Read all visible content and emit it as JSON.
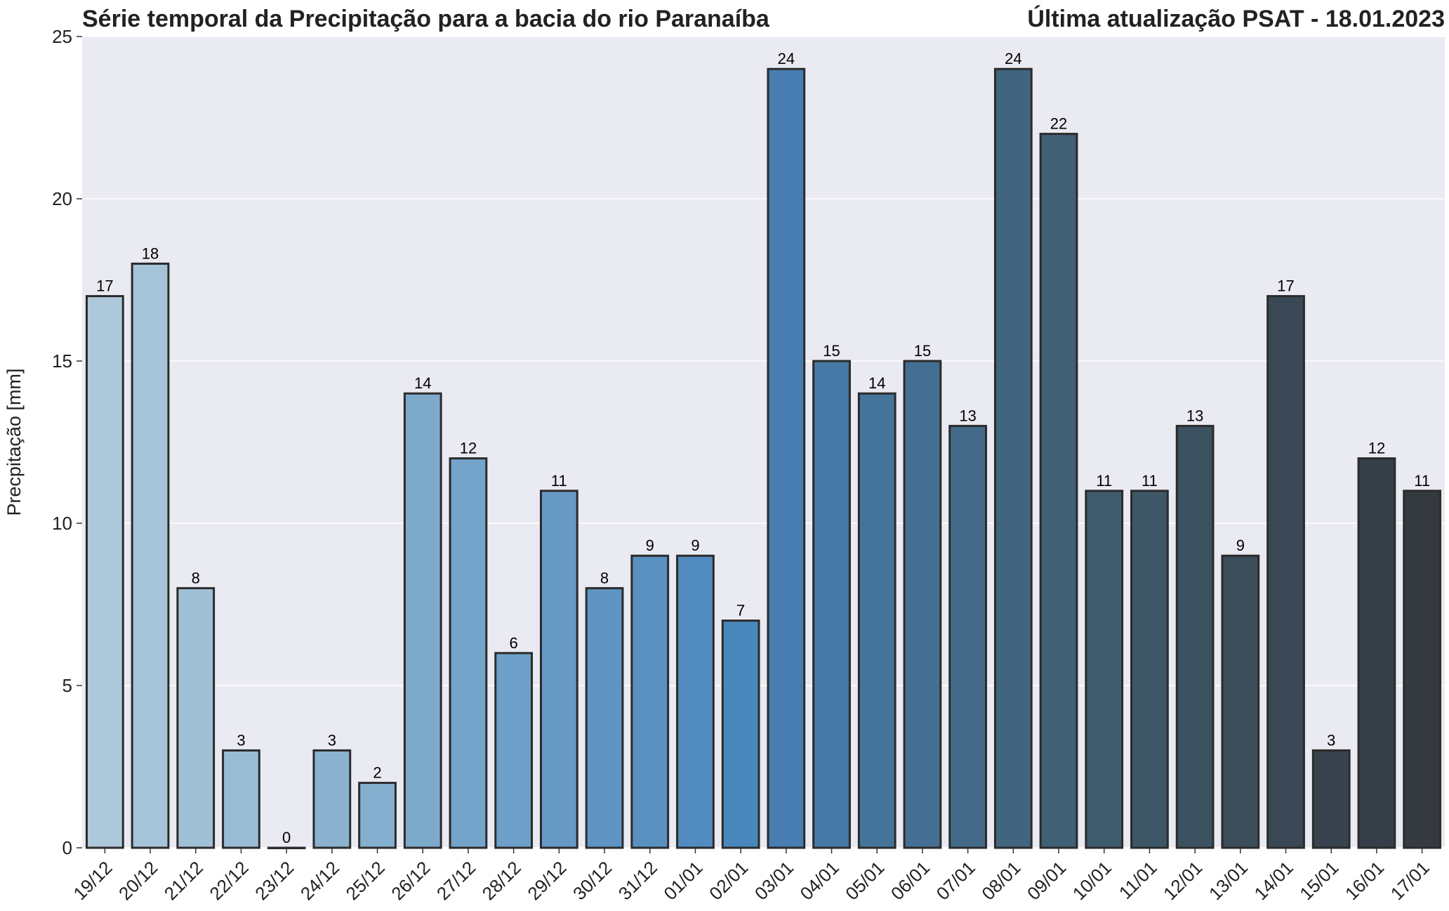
{
  "chart_data": {
    "type": "bar",
    "title": "Série temporal da Precipitação para a bacia do rio Paranaíba",
    "subtitle": "Última atualização PSAT - 18.01.2023",
    "xlabel": "",
    "ylabel": "Precpitação [mm]",
    "ylim": [
      0,
      25
    ],
    "yticks": [
      0,
      5,
      10,
      15,
      20,
      25
    ],
    "grid": true,
    "categories": [
      "19/12",
      "20/12",
      "21/12",
      "22/12",
      "23/12",
      "24/12",
      "25/12",
      "26/12",
      "27/12",
      "28/12",
      "29/12",
      "30/12",
      "31/12",
      "01/01",
      "02/01",
      "03/01",
      "04/01",
      "05/01",
      "06/01",
      "07/01",
      "08/01",
      "09/01",
      "10/01",
      "11/01",
      "12/01",
      "13/01",
      "14/01",
      "15/01",
      "16/01",
      "17/01"
    ],
    "values": [
      17,
      18,
      8,
      3,
      0,
      3,
      2,
      14,
      12,
      6,
      11,
      8,
      9,
      9,
      7,
      24,
      15,
      14,
      15,
      13,
      24,
      22,
      11,
      11,
      13,
      9,
      17,
      3,
      12,
      11
    ],
    "colors": [
      "#adc8da",
      "#a6c4d9",
      "#a0c0d6",
      "#99bbd4",
      "#92b7d2",
      "#8bb3d0",
      "#84afce",
      "#7da9cb",
      "#75a4ca",
      "#6e9fc8",
      "#6799c5",
      "#5f94c3",
      "#5890c0",
      "#518bbf",
      "#4a87bd",
      "#477db0",
      "#4679a5",
      "#45749b",
      "#446f92",
      "#436a89",
      "#41657f",
      "#406076",
      "#3e5b6e",
      "#3d5767",
      "#3c5261",
      "#3b4d5a",
      "#394854",
      "#38434e",
      "#363f48",
      "#353a40"
    ]
  }
}
